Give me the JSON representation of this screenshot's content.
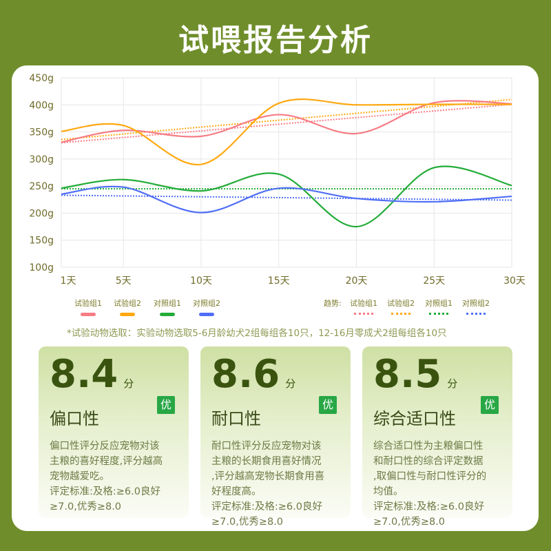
{
  "title": "试喂报告分析",
  "chart_data": {
    "type": "line",
    "x": [
      "1天",
      "5天",
      "10天",
      "15天",
      "20天",
      "25天",
      "30天"
    ],
    "y_ticks": [
      "450g",
      "400g",
      "350g",
      "300g",
      "250g",
      "200g",
      "150g",
      "100g"
    ],
    "ylim": [
      100,
      450
    ],
    "grid": true,
    "series": [
      {
        "name": "试验组1",
        "color": "#f77b84",
        "values": [
          331,
          353,
          342,
          382,
          347,
          404,
          402
        ]
      },
      {
        "name": "试验组2",
        "color": "#ffa80f",
        "values": [
          351,
          362,
          290,
          403,
          400,
          401,
          401
        ]
      },
      {
        "name": "对照组1",
        "color": "#22ac38",
        "values": [
          246,
          262,
          241,
          272,
          175,
          284,
          251
        ]
      },
      {
        "name": "对照组2",
        "color": "#4f6ef7",
        "values": [
          235,
          248,
          201,
          246,
          227,
          221,
          231
        ]
      }
    ],
    "trend_label": "趋势:",
    "trends": [
      {
        "name": "试验组1",
        "color": "#f77b84",
        "start": 330,
        "end": 401
      },
      {
        "name": "试验组2",
        "color": "#ffa80f",
        "start": 336,
        "end": 410
      },
      {
        "name": "对照组1",
        "color": "#22ac38",
        "start": 245,
        "end": 245
      },
      {
        "name": "对照组2",
        "color": "#4f6ef7",
        "start": 233,
        "end": 224
      }
    ]
  },
  "note": "*试验动物选取：实验动物选取5-6月龄幼犬2组每组各10只，12-16月零成犬2组每组各10只",
  "cards": [
    {
      "score": "8.4",
      "unit": "分",
      "name": "偏口性",
      "badge": "优",
      "lines": [
        "偏口性评分反应宠物对该",
        "主粮的喜好程度,评分越高",
        "宠物越爱吃。",
        "评定标准:及格:≥6.0良好",
        "≥7.0,优秀≥8.0"
      ]
    },
    {
      "score": "8.6",
      "unit": "分",
      "name": "耐口性",
      "badge": "优",
      "lines": [
        "耐口性评分反应宠物对该",
        "主粮的长期食用喜好情况",
        ",评分越高宠物长期食用喜",
        "好程度高。",
        "评定标准:及格:≥6.0良好",
        "≥7.0,优秀≥8.0"
      ]
    },
    {
      "score": "8.5",
      "unit": "分",
      "name": "综合适口性",
      "badge": "优",
      "lines": [
        "综合适口性为主粮偏口性",
        "和耐口性的综合评定数据",
        ",取偏口性与耐口性评分的",
        "均值。",
        "评定标准:及格:≥6.0良好",
        "≥7.0,优秀≥8.0"
      ]
    }
  ]
}
